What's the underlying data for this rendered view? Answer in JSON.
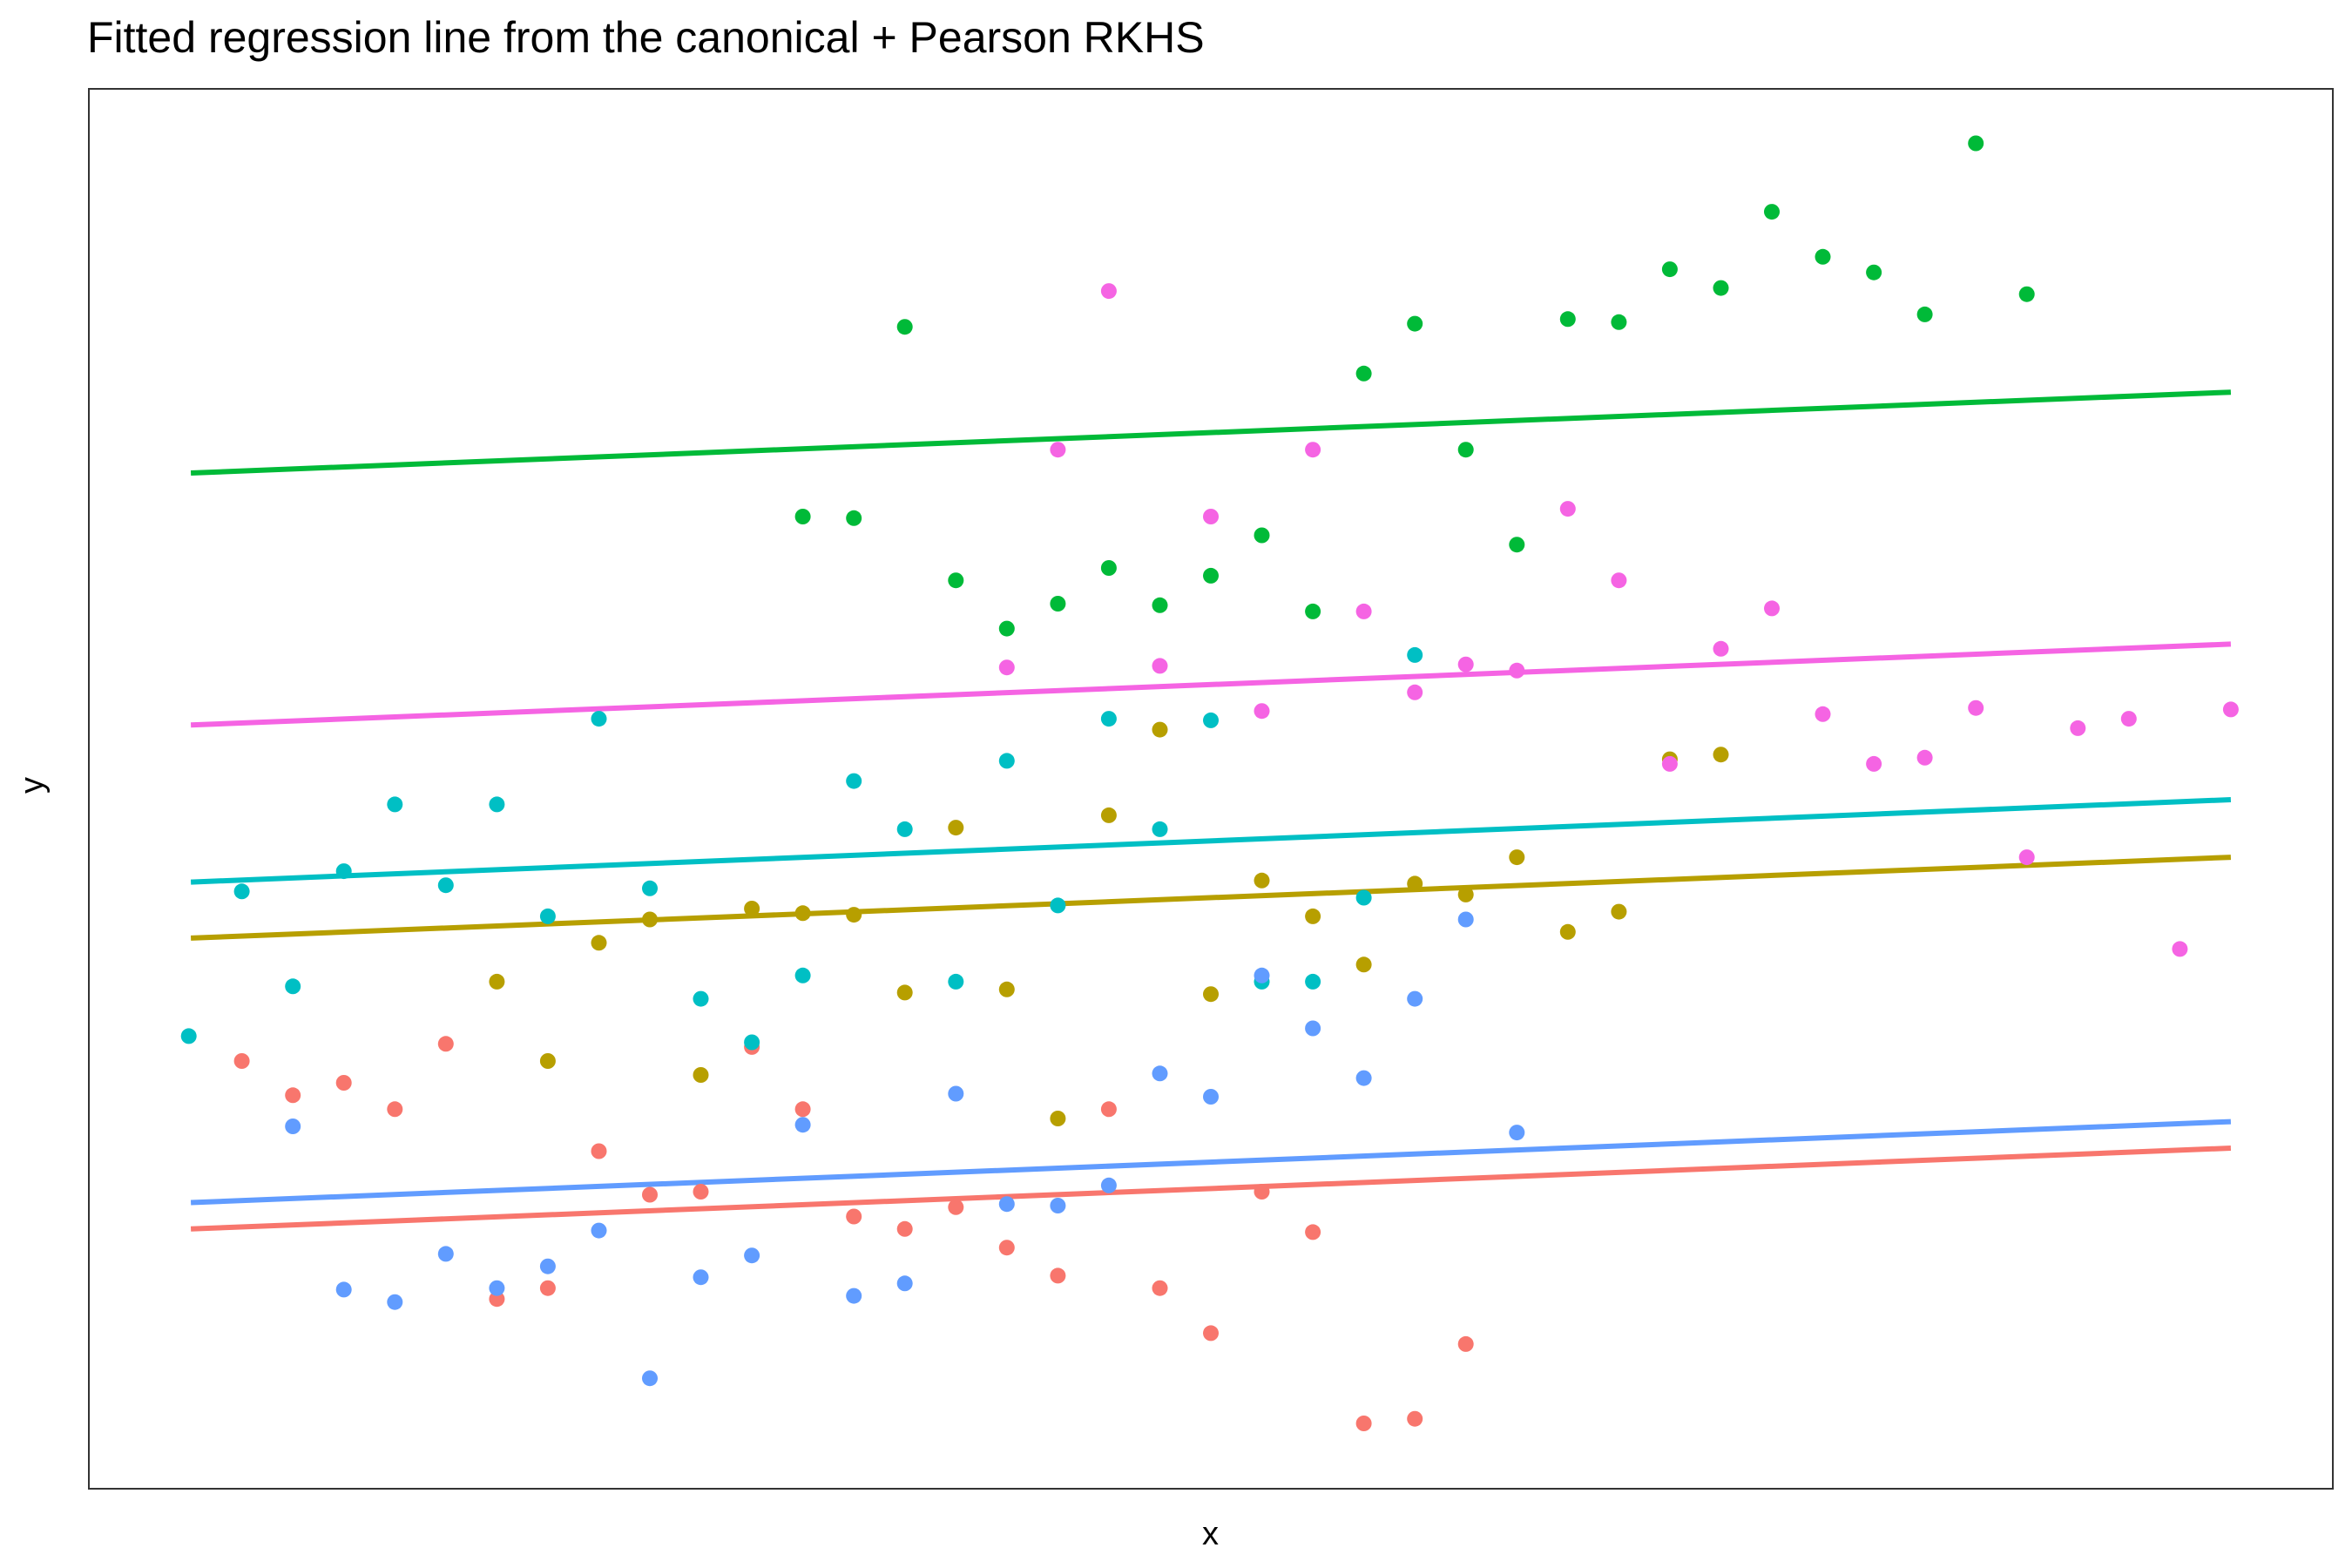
{
  "chart_data": {
    "type": "scatter",
    "title": "Fitted regression line from the canonical + Pearson RKHS",
    "xlabel": "x",
    "ylabel": "y",
    "xlim": [
      -0.05,
      1.05
    ],
    "ylim": [
      0.0,
      9.0
    ],
    "grid": false,
    "legend": "none",
    "series": [
      {
        "color": "#F8766D",
        "line": [
          [
            0,
            1.67
          ],
          [
            1,
            2.19
          ]
        ],
        "points": [
          [
            0.025,
            2.75
          ],
          [
            0.05,
            2.53
          ],
          [
            0.075,
            2.61
          ],
          [
            0.1,
            2.44
          ],
          [
            0.125,
            2.86
          ],
          [
            0.15,
            1.22
          ],
          [
            0.175,
            1.29
          ],
          [
            0.2,
            2.17
          ],
          [
            0.225,
            1.89
          ],
          [
            0.25,
            1.91
          ],
          [
            0.275,
            2.84
          ],
          [
            0.3,
            2.44
          ],
          [
            0.325,
            1.75
          ],
          [
            0.35,
            1.67
          ],
          [
            0.375,
            1.81
          ],
          [
            0.4,
            1.55
          ],
          [
            0.425,
            1.37
          ],
          [
            0.45,
            2.44
          ],
          [
            0.475,
            1.29
          ],
          [
            0.5,
            1.0
          ],
          [
            0.525,
            1.91
          ],
          [
            0.55,
            1.65
          ],
          [
            0.575,
            0.42
          ],
          [
            0.6,
            0.45
          ],
          [
            0.625,
            0.93
          ]
        ]
      },
      {
        "color": "#B79F00",
        "line": [
          [
            0,
            3.54
          ],
          [
            1,
            4.06
          ]
        ],
        "points": [
          [
            0.15,
            3.26
          ],
          [
            0.175,
            2.75
          ],
          [
            0.2,
            3.51
          ],
          [
            0.225,
            3.66
          ],
          [
            0.25,
            2.66
          ],
          [
            0.275,
            3.73
          ],
          [
            0.3,
            3.7
          ],
          [
            0.325,
            3.69
          ],
          [
            0.35,
            3.19
          ],
          [
            0.375,
            4.25
          ],
          [
            0.4,
            3.21
          ],
          [
            0.425,
            2.38
          ],
          [
            0.45,
            4.33
          ],
          [
            0.475,
            4.88
          ],
          [
            0.5,
            3.18
          ],
          [
            0.525,
            3.91
          ],
          [
            0.55,
            3.68
          ],
          [
            0.575,
            3.37
          ],
          [
            0.6,
            3.89
          ],
          [
            0.625,
            3.82
          ],
          [
            0.65,
            4.06
          ],
          [
            0.675,
            3.58
          ],
          [
            0.7,
            3.71
          ],
          [
            0.725,
            4.69
          ],
          [
            0.75,
            4.72
          ]
        ]
      },
      {
        "color": "#00BA38",
        "line": [
          [
            0,
            6.53
          ],
          [
            1,
            7.05
          ]
        ],
        "points": [
          [
            0.3,
            6.25
          ],
          [
            0.325,
            6.24
          ],
          [
            0.35,
            7.47
          ],
          [
            0.375,
            5.84
          ],
          [
            0.4,
            5.53
          ],
          [
            0.425,
            5.69
          ],
          [
            0.45,
            5.92
          ],
          [
            0.475,
            5.68
          ],
          [
            0.5,
            5.87
          ],
          [
            0.525,
            6.13
          ],
          [
            0.55,
            5.64
          ],
          [
            0.575,
            7.17
          ],
          [
            0.6,
            7.49
          ],
          [
            0.625,
            6.68
          ],
          [
            0.65,
            6.07
          ],
          [
            0.675,
            7.52
          ],
          [
            0.7,
            7.5
          ],
          [
            0.725,
            7.84
          ],
          [
            0.75,
            7.72
          ],
          [
            0.775,
            8.21
          ],
          [
            0.8,
            7.92
          ],
          [
            0.825,
            7.82
          ],
          [
            0.85,
            7.55
          ],
          [
            0.875,
            8.65
          ],
          [
            0.9,
            7.68
          ]
        ]
      },
      {
        "color": "#00BFC4",
        "line": [
          [
            0,
            3.9
          ],
          [
            1,
            4.43
          ]
        ],
        "points": [
          [
            -0.001,
            2.91
          ],
          [
            0.025,
            3.84
          ],
          [
            0.05,
            3.23
          ],
          [
            0.075,
            3.97
          ],
          [
            0.1,
            4.4
          ],
          [
            0.125,
            3.88
          ],
          [
            0.15,
            4.4
          ],
          [
            0.175,
            3.68
          ],
          [
            0.2,
            4.95
          ],
          [
            0.225,
            3.86
          ],
          [
            0.25,
            3.15
          ],
          [
            0.275,
            2.87
          ],
          [
            0.3,
            3.3
          ],
          [
            0.325,
            4.55
          ],
          [
            0.35,
            4.24
          ],
          [
            0.375,
            3.26
          ],
          [
            0.4,
            4.68
          ],
          [
            0.425,
            3.75
          ],
          [
            0.45,
            4.95
          ],
          [
            0.475,
            4.24
          ],
          [
            0.5,
            4.94
          ],
          [
            0.525,
            3.26
          ],
          [
            0.55,
            3.26
          ],
          [
            0.575,
            3.8
          ],
          [
            0.6,
            5.36
          ]
        ]
      },
      {
        "color": "#619CFF",
        "line": [
          [
            0,
            1.84
          ],
          [
            1,
            2.36
          ]
        ],
        "points": [
          [
            0.05,
            2.33
          ],
          [
            0.075,
            1.28
          ],
          [
            0.1,
            1.2
          ],
          [
            0.125,
            1.51
          ],
          [
            0.15,
            1.29
          ],
          [
            0.175,
            1.43
          ],
          [
            0.2,
            1.66
          ],
          [
            0.225,
            0.71
          ],
          [
            0.25,
            1.36
          ],
          [
            0.275,
            1.5
          ],
          [
            0.3,
            2.34
          ],
          [
            0.325,
            1.24
          ],
          [
            0.35,
            1.32
          ],
          [
            0.375,
            2.54
          ],
          [
            0.4,
            1.83
          ],
          [
            0.425,
            1.82
          ],
          [
            0.45,
            1.95
          ],
          [
            0.475,
            2.67
          ],
          [
            0.5,
            2.52
          ],
          [
            0.525,
            3.3
          ],
          [
            0.55,
            2.96
          ],
          [
            0.575,
            2.64
          ],
          [
            0.6,
            3.15
          ],
          [
            0.625,
            3.66
          ],
          [
            0.65,
            2.29
          ]
        ]
      },
      {
        "color": "#F564E3",
        "line": [
          [
            0,
            4.91
          ],
          [
            1,
            5.43
          ]
        ],
        "points": [
          [
            0.4,
            5.28
          ],
          [
            0.425,
            6.68
          ],
          [
            0.45,
            7.7
          ],
          [
            0.475,
            5.29
          ],
          [
            0.5,
            6.25
          ],
          [
            0.525,
            5.0
          ],
          [
            0.55,
            6.68
          ],
          [
            0.575,
            5.64
          ],
          [
            0.6,
            5.12
          ],
          [
            0.625,
            5.3
          ],
          [
            0.65,
            5.26
          ],
          [
            0.675,
            6.3
          ],
          [
            0.7,
            5.84
          ],
          [
            0.725,
            4.66
          ],
          [
            0.75,
            5.4
          ],
          [
            0.775,
            5.66
          ],
          [
            0.8,
            4.98
          ],
          [
            0.825,
            4.66
          ],
          [
            0.85,
            4.7
          ],
          [
            0.875,
            5.02
          ],
          [
            0.9,
            4.06
          ],
          [
            0.925,
            4.89
          ],
          [
            0.95,
            4.95
          ],
          [
            0.975,
            3.47
          ],
          [
            1.0,
            5.01
          ]
        ]
      }
    ]
  }
}
